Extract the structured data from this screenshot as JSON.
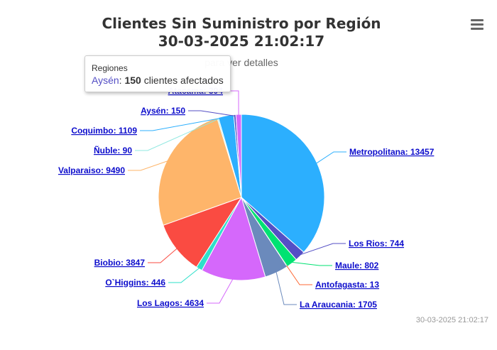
{
  "header": {
    "title_line1": "Clientes Sin Suministro por Región",
    "title_line2": "30-03-2025 21:02:17",
    "subtitle": "para ver detalles"
  },
  "menu": {
    "icon": "hamburger-menu-icon"
  },
  "credit": "30-03-2025 21:02:17",
  "tooltip": {
    "header": "Regiones",
    "name": "Aysén",
    "value": "150",
    "suffix": "clientes afectados"
  },
  "chart_data": {
    "type": "pie",
    "series_name": "Regiones",
    "slices": [
      {
        "name": "Metropolitana",
        "value": 13457,
        "color": "#2caffe"
      },
      {
        "name": "Los Rios",
        "value": 744,
        "color": "#544fc5"
      },
      {
        "name": "Maule",
        "value": 802,
        "color": "#00e272"
      },
      {
        "name": "Antofagasta",
        "value": 13,
        "color": "#fe6a35"
      },
      {
        "name": "La Araucania",
        "value": 1705,
        "color": "#6b8abc"
      },
      {
        "name": "Los Lagos",
        "value": 4634,
        "color": "#d568fb"
      },
      {
        "name": "O`Higgins",
        "value": 446,
        "color": "#2ee0ca"
      },
      {
        "name": "Biobio",
        "value": 3847,
        "color": "#fa4b42"
      },
      {
        "name": "Valparaiso",
        "value": 9490,
        "color": "#feb56a"
      },
      {
        "name": "Ñuble",
        "value": 90,
        "color": "#91e8e1"
      },
      {
        "name": "Coquimbo",
        "value": 1109,
        "color": "#2caffe"
      },
      {
        "name": "Aysén",
        "value": 150,
        "color": "#544fc5"
      },
      {
        "name": "Atacama",
        "value": 394,
        "color": "#d568fb"
      }
    ]
  }
}
